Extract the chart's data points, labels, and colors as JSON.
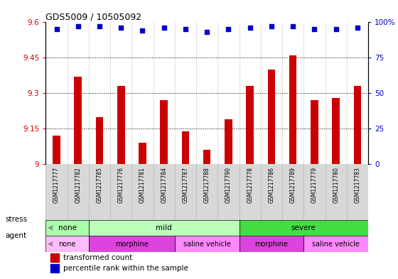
{
  "title": "GDS5009 / 10505092",
  "samples": [
    "GSM1217777",
    "GSM1217782",
    "GSM1217785",
    "GSM1217776",
    "GSM1217781",
    "GSM1217784",
    "GSM1217787",
    "GSM1217788",
    "GSM1217790",
    "GSM1217778",
    "GSM1217786",
    "GSM1217789",
    "GSM1217779",
    "GSM1217780",
    "GSM1217783"
  ],
  "transformed_count": [
    9.12,
    9.37,
    9.2,
    9.33,
    9.09,
    9.27,
    9.14,
    9.06,
    9.19,
    9.33,
    9.4,
    9.46,
    9.27,
    9.28,
    9.33
  ],
  "percentile_rank": [
    95,
    97,
    97,
    96,
    94,
    96,
    95,
    93,
    95,
    96,
    97,
    97,
    95,
    95,
    96
  ],
  "bar_color": "#cc0000",
  "dot_color": "#0000cc",
  "ylim_left": [
    9.0,
    9.6
  ],
  "ylim_right": [
    0,
    100
  ],
  "yticks_left": [
    9.0,
    9.15,
    9.3,
    9.45,
    9.6
  ],
  "yticks_right": [
    0,
    25,
    50,
    75,
    100
  ],
  "ytick_labels_left": [
    "9",
    "9.15",
    "9.3",
    "9.45",
    "9.6"
  ],
  "ytick_labels_right": [
    "0",
    "25",
    "50",
    "75",
    "100%"
  ],
  "hlines": [
    9.15,
    9.3,
    9.45
  ],
  "stress_spans": [
    {
      "label": "none",
      "start": 0,
      "end": 2,
      "color": "#aaffaa"
    },
    {
      "label": "mild",
      "start": 2,
      "end": 9,
      "color": "#bbffbb"
    },
    {
      "label": "severe",
      "start": 9,
      "end": 15,
      "color": "#44dd44"
    }
  ],
  "agent_spans": [
    {
      "label": "none",
      "start": 0,
      "end": 2,
      "color": "#ffbbff"
    },
    {
      "label": "morphine",
      "start": 2,
      "end": 6,
      "color": "#dd44dd"
    },
    {
      "label": "saline vehicle",
      "start": 6,
      "end": 9,
      "color": "#ff88ff"
    },
    {
      "label": "morphine",
      "start": 9,
      "end": 12,
      "color": "#dd44dd"
    },
    {
      "label": "saline vehicle",
      "start": 12,
      "end": 15,
      "color": "#ff88ff"
    }
  ],
  "legend_bar_label": "transformed count",
  "legend_dot_label": "percentile rank within the sample",
  "background_color": "#ffffff",
  "plot_bg": "#ffffff",
  "xtick_bg": "#d8d8d8"
}
